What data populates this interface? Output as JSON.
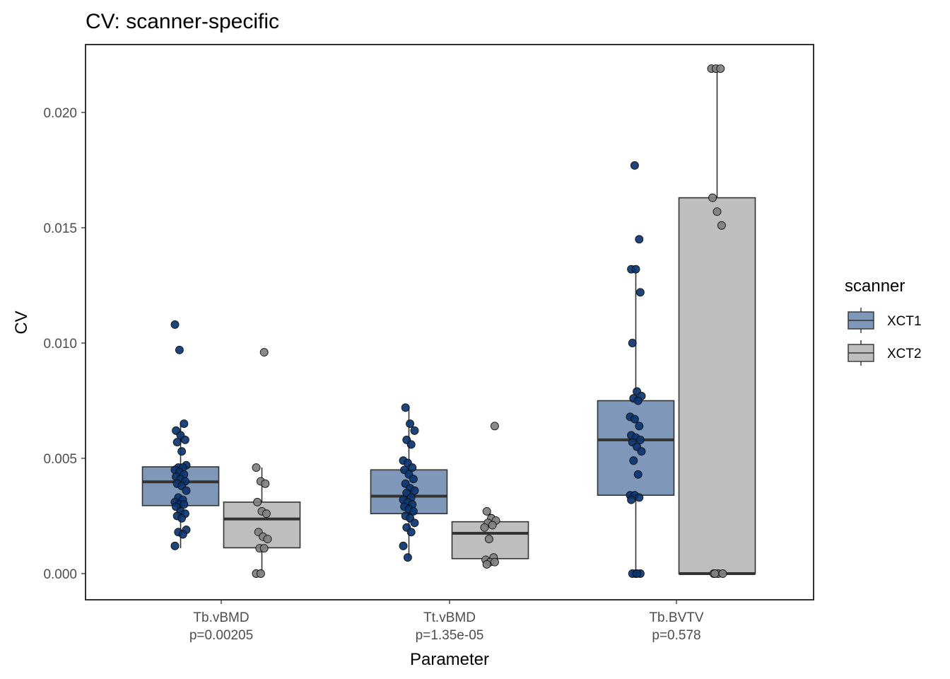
{
  "chart_data": {
    "type": "box",
    "title": "CV: scanner-specific",
    "xlabel": "Parameter",
    "ylabel": "CV",
    "ylim": [
      -0.00105,
      0.0229
    ],
    "yticks": [
      0.0,
      0.005,
      0.01,
      0.015,
      0.02
    ],
    "ytick_labels": [
      "0.000",
      "0.005",
      "0.010",
      "0.015",
      "0.020"
    ],
    "grid": false,
    "categories": [
      {
        "name": "Tb.vBMD",
        "sublabel": "p=0.00205"
      },
      {
        "name": "Tt.vBMD",
        "sublabel": "p=1.35e-05"
      },
      {
        "name": "Tb.BVTV",
        "sublabel": "p=0.578"
      }
    ],
    "legend": {
      "title": "scanner",
      "position": "right",
      "entries": [
        {
          "label": "XCT1",
          "fill": "#7f97b8",
          "point": "#0a3470"
        },
        {
          "label": "XCT2",
          "fill": "#bebebe",
          "point": "#808080"
        }
      ]
    },
    "series": [
      {
        "name": "XCT1",
        "boxes": [
          {
            "q1": 0.00295,
            "median": 0.00398,
            "q3": 0.00463,
            "whisker_low": 0.0011,
            "whisker_high": 0.0065,
            "points": [
              0.0108,
              0.0097,
              0.0065,
              0.0062,
              0.006,
              0.0058,
              0.0057,
              0.0053,
              0.0047,
              0.0046,
              0.0046,
              0.0045,
              0.0044,
              0.0043,
              0.0042,
              0.0041,
              0.004,
              0.0039,
              0.0038,
              0.0036,
              0.0033,
              0.0032,
              0.0031,
              0.003,
              0.003,
              0.0029,
              0.0027,
              0.0026,
              0.0025,
              0.0024,
              0.0019,
              0.0018,
              0.0017,
              0.0012
            ]
          },
          {
            "q1": 0.0026,
            "median": 0.00336,
            "q3": 0.0045,
            "whisker_low": 0.0007,
            "whisker_high": 0.0072,
            "points": [
              0.0072,
              0.0065,
              0.0062,
              0.0058,
              0.0056,
              0.0049,
              0.0048,
              0.0046,
              0.0045,
              0.0043,
              0.0041,
              0.0039,
              0.0037,
              0.0036,
              0.0035,
              0.0033,
              0.0032,
              0.0031,
              0.003,
              0.0029,
              0.0028,
              0.0027,
              0.0025,
              0.0024,
              0.0022,
              0.002,
              0.0018,
              0.0012,
              0.0007
            ]
          },
          {
            "q1": 0.0034,
            "median": 0.0058,
            "q3": 0.0075,
            "whisker_low": 0.0,
            "whisker_high": 0.0132,
            "points": [
              0.0177,
              0.0145,
              0.0132,
              0.0132,
              0.0122,
              0.01,
              0.0079,
              0.0077,
              0.0076,
              0.0075,
              0.0068,
              0.0067,
              0.0064,
              0.006,
              0.0059,
              0.0058,
              0.0057,
              0.0055,
              0.0053,
              0.0049,
              0.0043,
              0.0034,
              0.0034,
              0.0033,
              0.0032,
              0.0,
              0.0,
              0.0,
              0.0
            ]
          }
        ]
      },
      {
        "name": "XCT2",
        "boxes": [
          {
            "q1": 0.00112,
            "median": 0.00237,
            "q3": 0.0031,
            "whisker_low": 0.0,
            "whisker_high": 0.0046,
            "points": [
              0.0096,
              0.0046,
              0.004,
              0.0039,
              0.0031,
              0.0027,
              0.0026,
              0.0018,
              0.0016,
              0.0015,
              0.0011,
              0.0011,
              0.0,
              0.0
            ]
          },
          {
            "q1": 0.00065,
            "median": 0.00175,
            "q3": 0.00225,
            "whisker_low": 0.0004,
            "whisker_high": 0.0027,
            "points": [
              0.0064,
              0.0027,
              0.0024,
              0.0023,
              0.0022,
              0.0021,
              0.002,
              0.0015,
              0.0007,
              0.0006,
              0.0005,
              0.0005,
              0.0004
            ]
          },
          {
            "q1": 0.0,
            "median": 0.0,
            "q3": 0.0163,
            "whisker_low": 0.0,
            "whisker_high": 0.0219,
            "points": [
              0.0219,
              0.0219,
              0.0219,
              0.0163,
              0.0157,
              0.0151,
              0.0,
              0.0,
              0.0,
              0.0
            ]
          }
        ]
      }
    ]
  }
}
